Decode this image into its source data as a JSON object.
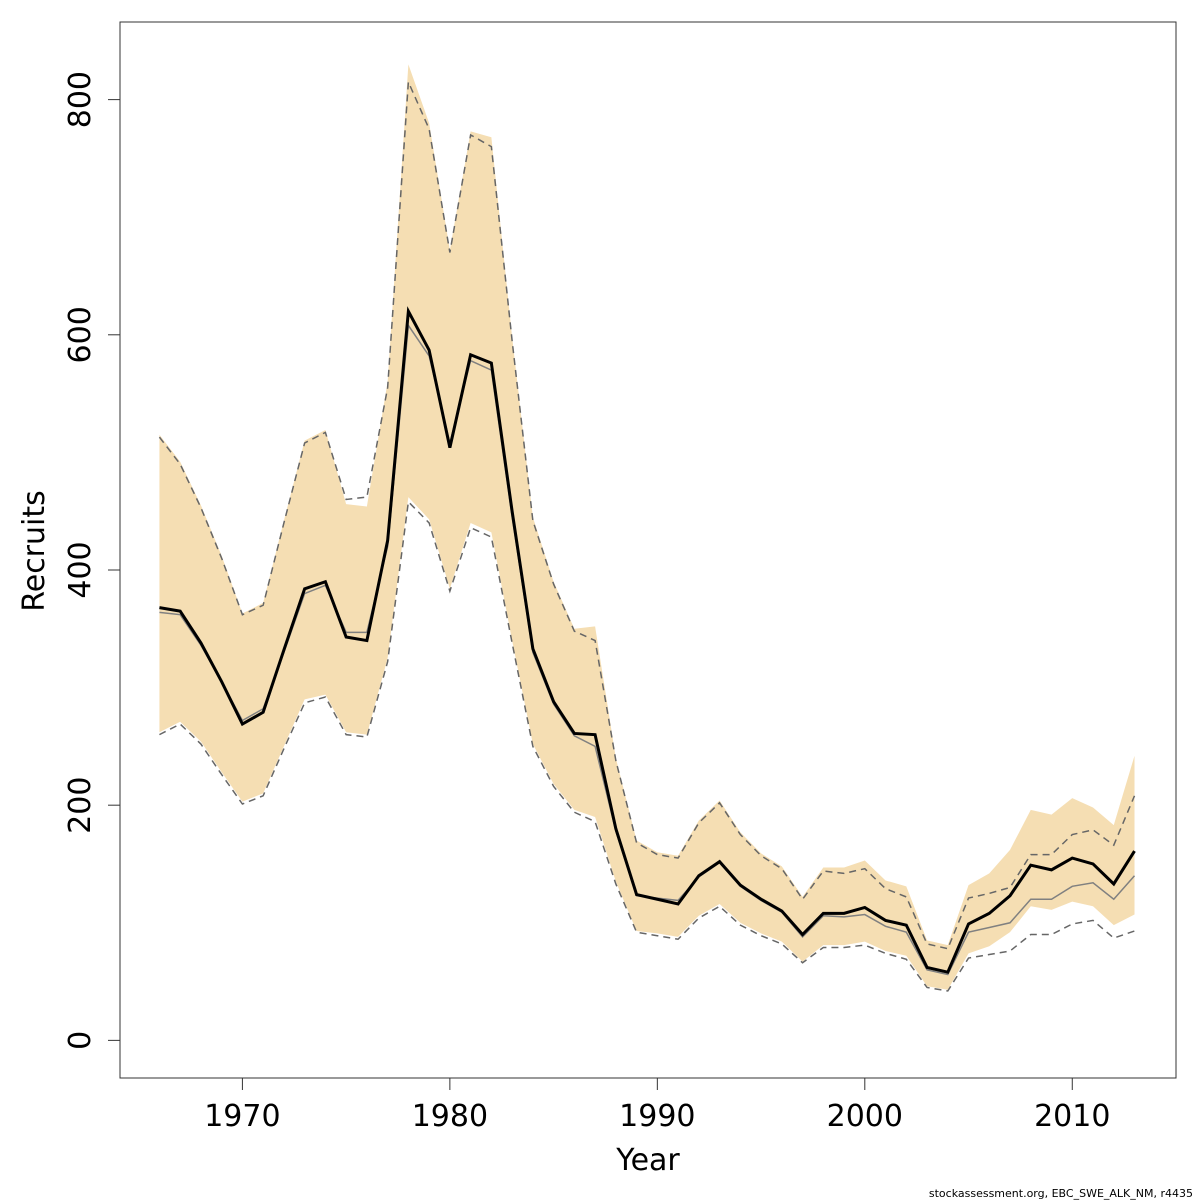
{
  "chart_data": {
    "type": "line",
    "xlabel": "Year",
    "ylabel": "Recruits",
    "footer": "stockassessment.org, EBC_SWE_ALK_NM, r4435",
    "x": [
      1966,
      1967,
      1968,
      1969,
      1970,
      1971,
      1972,
      1973,
      1974,
      1975,
      1976,
      1977,
      1978,
      1979,
      1980,
      1981,
      1982,
      1983,
      1984,
      1985,
      1986,
      1987,
      1988,
      1989,
      1990,
      1991,
      1992,
      1993,
      1994,
      1995,
      1996,
      1997,
      1998,
      1999,
      2000,
      2001,
      2002,
      2003,
      2004,
      2005,
      2006,
      2007,
      2008,
      2009,
      2010,
      2011,
      2012,
      2013
    ],
    "estimate": {
      "color": "#000000",
      "values": [
        368,
        365,
        338,
        305,
        269,
        279,
        332,
        384,
        390,
        343,
        340,
        425,
        620,
        587,
        504,
        583,
        576,
        450,
        333,
        288,
        261,
        260,
        180,
        124,
        120,
        116,
        140,
        152,
        132,
        120,
        110,
        90,
        108,
        108,
        113,
        102,
        98,
        62,
        58,
        99,
        108,
        123,
        149,
        145,
        155,
        150,
        133,
        161
      ]
    },
    "previous_estimate": {
      "color": "#808080",
      "values": [
        364,
        362,
        336,
        305,
        272,
        282,
        330,
        380,
        387,
        347,
        347,
        420,
        608,
        582,
        508,
        578,
        570,
        445,
        330,
        286,
        259,
        250,
        178,
        123,
        121,
        119,
        139,
        151,
        131,
        119,
        109,
        88,
        106,
        105,
        107,
        97,
        92,
        60,
        56,
        92,
        96,
        100,
        120,
        120,
        131,
        134,
        120,
        140
      ]
    },
    "ci_band": {
      "color": "#f5deb3",
      "upper": [
        515,
        492,
        455,
        412,
        363,
        372,
        442,
        510,
        519,
        456,
        454,
        560,
        830,
        780,
        672,
        773,
        768,
        598,
        445,
        390,
        350,
        352,
        240,
        170,
        160,
        157,
        187,
        204,
        177,
        159,
        148,
        122,
        147,
        147,
        153,
        136,
        131,
        85,
        81,
        132,
        142,
        162,
        196,
        192,
        206,
        198,
        183,
        242
      ],
      "lower": [
        262,
        271,
        254,
        228,
        203,
        210,
        250,
        290,
        294,
        262,
        260,
        325,
        462,
        443,
        384,
        440,
        432,
        340,
        252,
        218,
        196,
        190,
        135,
        93,
        91,
        88,
        106,
        116,
        100,
        91,
        84,
        67,
        81,
        81,
        84,
        76,
        72,
        46,
        43,
        74,
        80,
        92,
        114,
        111,
        118,
        114,
        98,
        107
      ]
    },
    "previous_ci": {
      "color": "#666666",
      "upper": [
        513,
        490,
        453,
        410,
        362,
        370,
        440,
        508,
        517,
        460,
        462,
        555,
        815,
        775,
        670,
        770,
        760,
        595,
        442,
        388,
        348,
        340,
        238,
        168,
        158,
        155,
        185,
        202,
        175,
        157,
        146,
        120,
        144,
        142,
        146,
        129,
        122,
        82,
        78,
        121,
        125,
        130,
        158,
        158,
        175,
        179,
        166,
        208
      ],
      "lower": [
        260,
        269,
        252,
        226,
        201,
        208,
        248,
        287,
        292,
        260,
        258,
        322,
        458,
        440,
        382,
        436,
        428,
        338,
        250,
        216,
        194,
        186,
        133,
        92,
        89,
        86,
        104,
        114,
        98,
        89,
        82,
        66,
        79,
        79,
        81,
        74,
        69,
        45,
        42,
        70,
        73,
        76,
        90,
        90,
        99,
        102,
        87,
        93
      ]
    },
    "xlim": [
      1964.1,
      2015.0
    ],
    "ylim": [
      -32,
      866
    ],
    "xticks": [
      1970,
      1980,
      1990,
      2000,
      2010
    ],
    "yticks": [
      0,
      200,
      400,
      600,
      800
    ]
  }
}
